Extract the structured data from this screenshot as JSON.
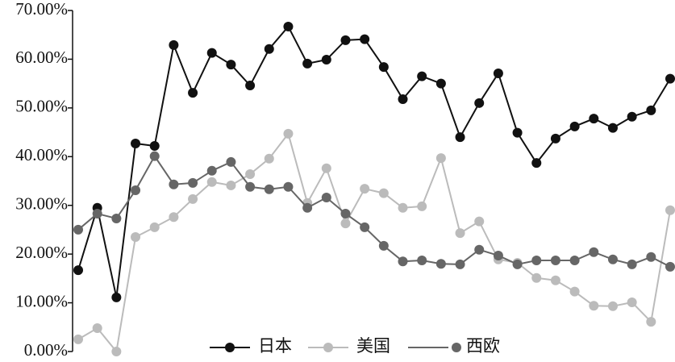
{
  "chart_data": {
    "type": "line",
    "categories": [
      null,
      null,
      null,
      null,
      null,
      null,
      null,
      null,
      null,
      null,
      null,
      null,
      null,
      null,
      null,
      null,
      null,
      null,
      null,
      null,
      null,
      null,
      null,
      null,
      null,
      null,
      null,
      null,
      null,
      null,
      null,
      null
    ],
    "series": [
      {
        "name": "日本",
        "color": "#111111",
        "marker_color": "#111111",
        "values": [
          16.7,
          29.5,
          11.1,
          42.7,
          42.2,
          62.9,
          53.1,
          61.3,
          58.9,
          54.6,
          62.1,
          66.7,
          59.1,
          59.9,
          63.9,
          64.1,
          58.4,
          51.8,
          56.5,
          55.0,
          44.0,
          51.0,
          57.1,
          44.9,
          38.7,
          43.7,
          46.2,
          47.8,
          45.9,
          48.2,
          49.5,
          56.0
        ]
      },
      {
        "name": "美国",
        "color": "#bbbbbb",
        "marker_color": "#bbbbbb",
        "values": [
          2.5,
          4.8,
          0,
          23.5,
          25.5,
          27.6,
          31.3,
          34.8,
          34.1,
          36.4,
          39.6,
          44.7,
          30.5,
          37.6,
          26.3,
          33.4,
          32.5,
          29.5,
          29.8,
          39.7,
          24.3,
          26.7,
          18.9,
          18.2,
          15.1,
          14.6,
          12.3,
          9.4,
          9.3,
          10.1,
          6.1,
          29.0
        ]
      },
      {
        "name": "西欧",
        "color": "#666666",
        "marker_color": "#666666",
        "values": [
          25.0,
          28.3,
          27.3,
          33.1,
          40.1,
          34.3,
          34.6,
          37.1,
          38.9,
          33.8,
          33.3,
          33.8,
          29.5,
          31.6,
          28.3,
          25.5,
          21.7,
          18.5,
          18.7,
          18.0,
          17.9,
          20.9,
          19.7,
          17.9,
          18.7,
          18.7,
          18.7,
          20.4,
          18.9,
          17.9,
          19.4,
          17.4
        ]
      }
    ],
    "ylim": [
      0,
      70
    ],
    "yticks": [
      {
        "value": 0,
        "label": "0.00%"
      },
      {
        "value": 10,
        "label": "10.00%"
      },
      {
        "value": 20,
        "label": "20.00%"
      },
      {
        "value": 30,
        "label": "30.00%"
      },
      {
        "value": 40,
        "label": "40.00%"
      },
      {
        "value": 50,
        "label": "50.00%"
      },
      {
        "value": 60,
        "label": "60.00%"
      },
      {
        "value": 70,
        "label": "70.00%"
      }
    ],
    "legend": "bottom"
  }
}
